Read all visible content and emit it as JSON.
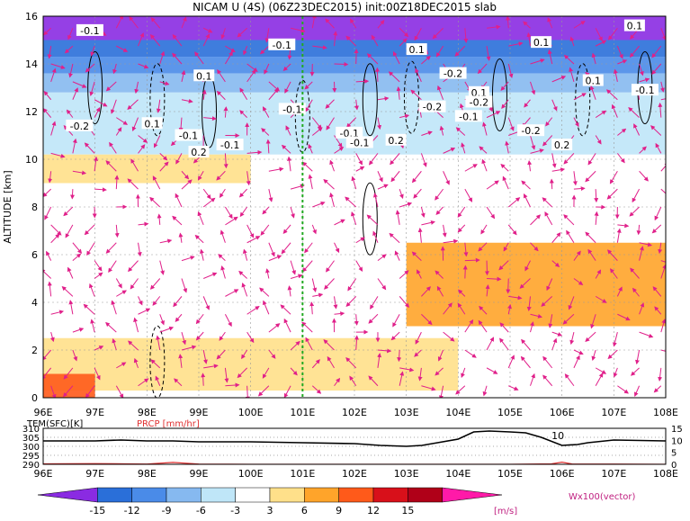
{
  "title": "NICAM U (4S) (06Z23DEC2015) init:00Z18DEC2015 slab",
  "chart_data": [
    {
      "type": "heatmap",
      "ylabel": "ALTITUDE [km]",
      "xlim": [
        96,
        108
      ],
      "ylim": [
        0,
        16
      ],
      "x_ticks": [
        "96E",
        "97E",
        "98E",
        "99E",
        "100E",
        "101E",
        "102E",
        "103E",
        "104E",
        "105E",
        "106E",
        "107E",
        "108E"
      ],
      "y_ticks": [
        "0",
        "2",
        "4",
        "6",
        "8",
        "10",
        "12",
        "14",
        "16"
      ],
      "grid": true,
      "marker_line_lon": 101,
      "field_bands": [
        {
          "zmin": 15.0,
          "zmax": 16.0,
          "level": -15
        },
        {
          "zmin": 14.3,
          "zmax": 15.0,
          "level": -12
        },
        {
          "zmin": 13.6,
          "zmax": 14.3,
          "level": -9
        },
        {
          "zmin": 12.8,
          "zmax": 13.6,
          "level": -6
        },
        {
          "zmin": 10.2,
          "zmax": 12.8,
          "level": -3
        },
        {
          "zmin": 9.0,
          "zmax": 10.2,
          "level": 3,
          "lon_range": [
            96,
            100
          ]
        },
        {
          "zmin": 3.0,
          "zmax": 6.5,
          "level": 6,
          "lon_range": [
            103,
            108
          ]
        },
        {
          "zmin": 0.3,
          "zmax": 2.5,
          "level": 3,
          "lon_range": [
            96,
            104
          ]
        },
        {
          "zmin": 0.0,
          "zmax": 1.0,
          "level": 9,
          "lon_range": [
            96,
            97
          ]
        }
      ],
      "contour_labels": [
        {
          "text": "-0.1",
          "x": 96.9,
          "y": 15.4
        },
        {
          "text": "-0.1",
          "x": 100.6,
          "y": 14.8
        },
        {
          "text": "0.1",
          "x": 99.1,
          "y": 13.5
        },
        {
          "text": "-0.1",
          "x": 100.8,
          "y": 12.1
        },
        {
          "text": "0.1",
          "x": 98.1,
          "y": 11.5
        },
        {
          "text": "-0.2",
          "x": 96.7,
          "y": 11.4
        },
        {
          "text": "-0.1",
          "x": 98.8,
          "y": 11.0
        },
        {
          "text": "-0.1",
          "x": 99.6,
          "y": 10.6
        },
        {
          "text": "0.2",
          "x": 99.0,
          "y": 10.3
        },
        {
          "text": "0.1",
          "x": 103.2,
          "y": 14.6
        },
        {
          "text": "-0.2",
          "x": 103.9,
          "y": 13.6
        },
        {
          "text": "0.1",
          "x": 104.4,
          "y": 12.8
        },
        {
          "text": "-0.2",
          "x": 104.4,
          "y": 12.4
        },
        {
          "text": "-0.2",
          "x": 103.5,
          "y": 12.2
        },
        {
          "text": "-0.1",
          "x": 104.2,
          "y": 11.8
        },
        {
          "text": "-0.1",
          "x": 101.9,
          "y": 11.1
        },
        {
          "text": "-0.2",
          "x": 105.4,
          "y": 11.2
        },
        {
          "text": "0.2",
          "x": 102.8,
          "y": 10.8
        },
        {
          "text": "-0.1",
          "x": 102.1,
          "y": 10.7
        },
        {
          "text": "0.2",
          "x": 106.0,
          "y": 10.6
        },
        {
          "text": "0.1",
          "x": 105.6,
          "y": 14.9
        },
        {
          "text": "0.1",
          "x": 107.4,
          "y": 15.6
        },
        {
          "text": "0.1",
          "x": 106.6,
          "y": 13.3
        },
        {
          "text": "-0.1",
          "x": 107.6,
          "y": 12.9
        }
      ]
    },
    {
      "type": "line",
      "left_label": "TEM(SFC)[K]",
      "right_label": "PRCP [mm/hr]",
      "x_ticks": [
        "96E",
        "97E",
        "98E",
        "99E",
        "100E",
        "101E",
        "102E",
        "103E",
        "104E",
        "105E",
        "106E",
        "107E",
        "108E"
      ],
      "left_ticks": [
        "310",
        "305",
        "300",
        "295",
        "290"
      ],
      "right_ticks": [
        "15",
        "10",
        "5",
        "0"
      ],
      "xlim": [
        96,
        108
      ],
      "left_ylim": [
        290,
        310
      ],
      "right_ylim": [
        0,
        15
      ],
      "series": [
        {
          "axis": "left",
          "x": [
            96,
            97,
            97.5,
            98,
            98.5,
            99,
            100,
            101,
            102,
            102.5,
            103,
            103.3,
            103.6,
            104,
            104.3,
            104.6,
            105,
            105.3,
            105.6,
            106,
            106.3,
            106.5,
            107,
            108
          ],
          "y": [
            303,
            303,
            303.5,
            303,
            303,
            302.5,
            302.5,
            302,
            301.5,
            300.5,
            300,
            300.5,
            302,
            304,
            308,
            308.5,
            308,
            307.5,
            305,
            300.5,
            301,
            302,
            303.5,
            303
          ]
        },
        {
          "axis": "right",
          "x": [
            96,
            97,
            98,
            98.5,
            99,
            100,
            101,
            102,
            103,
            104,
            105,
            105.8,
            106,
            106.2,
            107,
            108
          ],
          "y": [
            0.2,
            0.3,
            0.1,
            0.8,
            0.1,
            0,
            0,
            0,
            0,
            0,
            0,
            0.2,
            0.9,
            0.1,
            0.1,
            0
          ]
        }
      ],
      "annotation": "10"
    }
  ],
  "colorbar": {
    "labels": [
      "-15",
      "-12",
      "-9",
      "-6",
      "-3",
      "3",
      "6",
      "9",
      "12",
      "15"
    ],
    "unit": "[m/s]",
    "colors": [
      "#8a2be2",
      "#2a6fd9",
      "#4a8be8",
      "#86b9f0",
      "#bfe6f8",
      "#ffffff",
      "#ffe08a",
      "#ffa42a",
      "#ff5a1a",
      "#d8101a",
      "#b00018",
      "#ff1aa8"
    ],
    "vector_label": "Wx100(vector)"
  }
}
